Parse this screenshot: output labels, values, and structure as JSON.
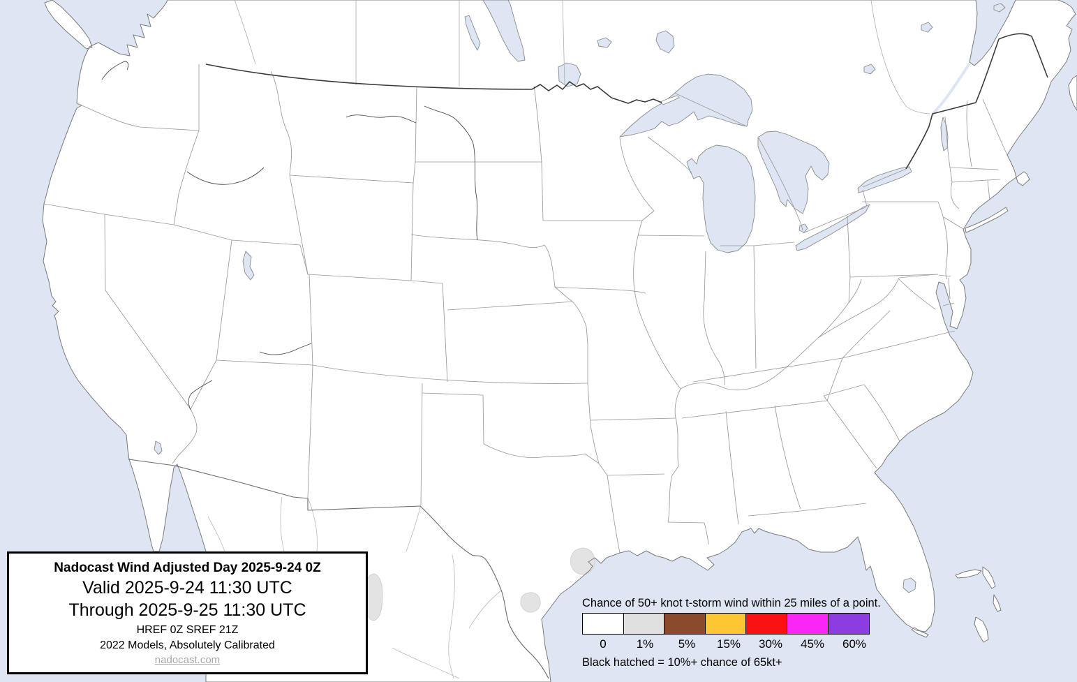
{
  "map": {
    "name": "Nadocast thunderstorm wind probability map - continental United States",
    "water_color": "#dee5f3",
    "land_color": "#ffffff",
    "coast_color": "#7a7a7a",
    "state_border_color": "#999999",
    "international_border_color": "#3a3a3a",
    "province_border_color": "#aeaeae",
    "mexico_border_color": "#bbbbbb",
    "river_color": "#4a4a4a",
    "probability_area_color": "#e3e3e3",
    "probability_areas": [
      "1% area near Houston TX coast",
      "1% area near Corpus Christi TX",
      "1% area near Del Rio TX (partly behind info box)"
    ]
  },
  "info_box": {
    "title": "Nadocast Wind Adjusted Day 2025-9-24 0Z",
    "valid_line": "Valid 2025-9-24 11:30 UTC",
    "through_line": "Through 2025-9-25 11:30 UTC",
    "models_line1": "HREF 0Z SREF 21Z",
    "models_line2": "2022 Models, Absolutely Calibrated",
    "link": "nadocast.com"
  },
  "legend": {
    "title": "Chance of 50+ knot t-storm wind within 25 miles of a point.",
    "note": "Black hatched = 10%+ chance of 65kt+",
    "bins": [
      {
        "label": "0",
        "color": "#ffffff"
      },
      {
        "label": "1%",
        "color": "#e0e0e0"
      },
      {
        "label": "5%",
        "color": "#8c4a2d"
      },
      {
        "label": "15%",
        "color": "#fcc732"
      },
      {
        "label": "30%",
        "color": "#fa1113"
      },
      {
        "label": "45%",
        "color": "#fa26f3"
      },
      {
        "label": "60%",
        "color": "#8d3ce2"
      }
    ]
  }
}
